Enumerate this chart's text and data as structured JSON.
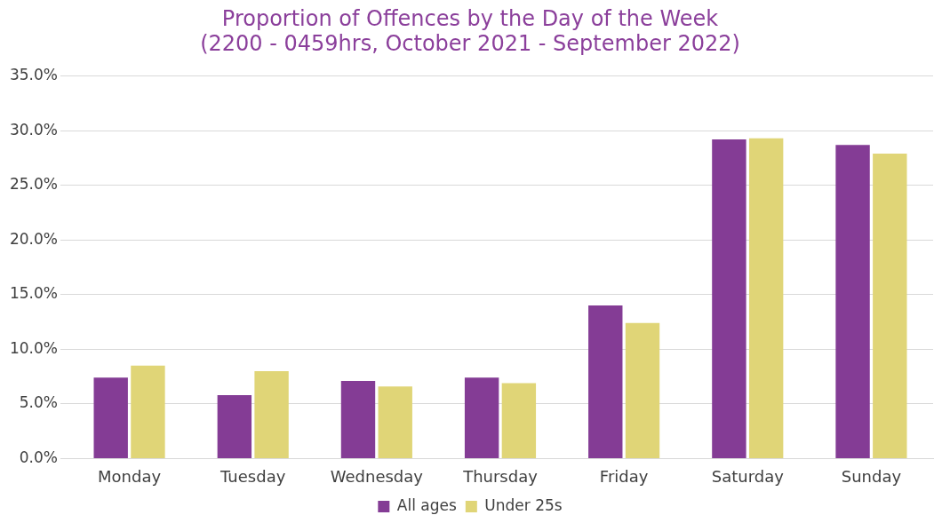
{
  "chart_data": {
    "type": "bar",
    "title": [
      "Proportion of Offences by the Day of the Week",
      "(2200 - 0459hrs, October 2021 - September 2022)"
    ],
    "categories": [
      "Monday",
      "Tuesday",
      "Wednesday",
      "Thursday",
      "Friday",
      "Saturday",
      "Sunday"
    ],
    "series": [
      {
        "name": "All ages",
        "color": "#843c95",
        "values": [
          7.4,
          5.8,
          7.1,
          7.4,
          14.0,
          29.2,
          28.7
        ]
      },
      {
        "name": "Under 25s",
        "color": "#e0d577",
        "values": [
          8.5,
          8.0,
          6.6,
          6.9,
          12.4,
          29.3,
          27.9
        ]
      }
    ],
    "ylim": [
      0,
      35
    ],
    "yticks": [
      {
        "value": 0,
        "label": "0.0%"
      },
      {
        "value": 5,
        "label": "5.0%"
      },
      {
        "value": 10,
        "label": "10.0%"
      },
      {
        "value": 15,
        "label": "15.0%"
      },
      {
        "value": 20,
        "label": "20.0%"
      },
      {
        "value": 25,
        "label": "25.0%"
      },
      {
        "value": 30,
        "label": "30.0%"
      },
      {
        "value": 35,
        "label": "35.0%"
      }
    ],
    "grid": "y",
    "legend": "bottom"
  }
}
